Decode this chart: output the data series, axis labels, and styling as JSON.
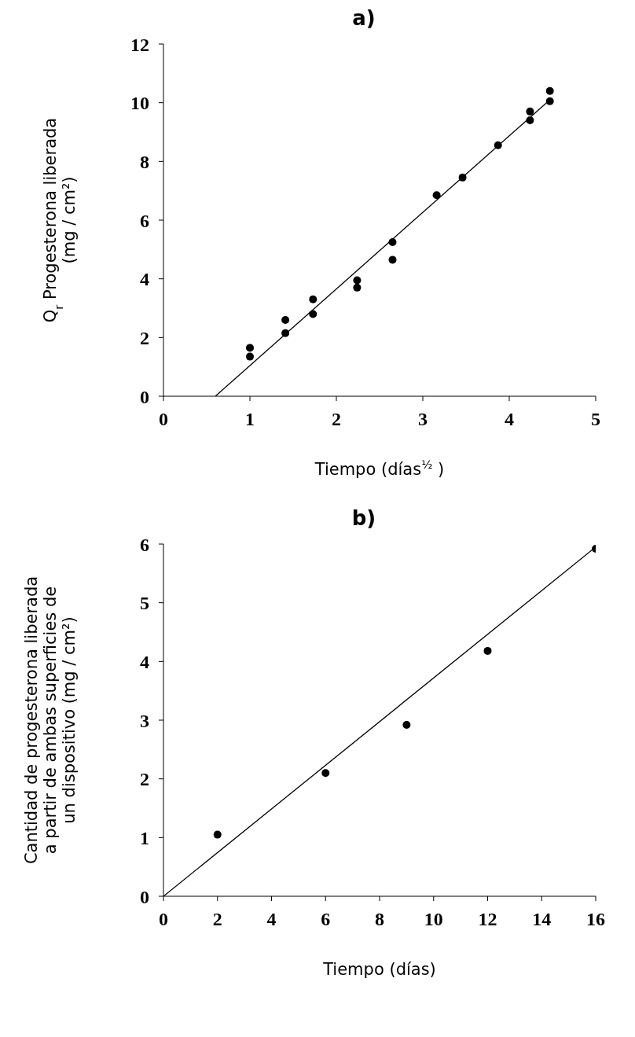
{
  "chart_data": [
    {
      "type": "scatter",
      "title": "a)",
      "xlabel": "Tiempo (días$^{½}$ )",
      "ylabel": "Q$_{r}$ Progesterona liberada (mg / cm²)",
      "xlim": [
        0,
        5
      ],
      "xticks": [
        0,
        1,
        2,
        3,
        4,
        5
      ],
      "ylim": [
        0,
        12
      ],
      "yticks": [
        0,
        2,
        4,
        6,
        8,
        10,
        12
      ],
      "grid": false,
      "legend": false,
      "series": [
        {
          "marker": "circle",
          "color": "#000000",
          "x": [
            1.0,
            1.0,
            1.41,
            1.41,
            1.73,
            1.73,
            2.24,
            2.24,
            2.65,
            2.65,
            3.16,
            3.46,
            3.87,
            4.24,
            4.24,
            4.47,
            4.47
          ],
          "values": [
            1.65,
            1.35,
            2.6,
            2.15,
            3.3,
            2.8,
            3.95,
            3.7,
            5.25,
            4.65,
            6.85,
            7.45,
            8.55,
            9.7,
            9.4,
            10.4,
            10.05
          ]
        },
        {
          "type": "line",
          "marker": "none",
          "line_style": "solid",
          "color": "#000000",
          "x": [
            0.6,
            4.47
          ],
          "values": [
            0,
            10.1
          ]
        }
      ]
    },
    {
      "type": "scatter",
      "title": "b)",
      "xlabel": "Tiempo (días)",
      "ylabel": "Cantidad de progesterona liberada a partir de ambas superficies de un dispositivo (mg / cm²)",
      "xlim": [
        0,
        16
      ],
      "xticks": [
        0,
        2,
        4,
        6,
        8,
        10,
        12,
        14,
        16
      ],
      "ylim": [
        0,
        6
      ],
      "yticks": [
        0,
        1,
        2,
        3,
        4,
        5,
        6
      ],
      "grid": false,
      "legend": false,
      "series": [
        {
          "marker": "circle",
          "color": "#000000",
          "x": [
            2,
            6,
            9,
            12,
            16
          ],
          "values": [
            1.05,
            2.1,
            2.92,
            4.18,
            5.92
          ]
        },
        {
          "type": "line",
          "marker": "none",
          "line_style": "solid",
          "color": "#000000",
          "x": [
            0,
            16
          ],
          "values": [
            0,
            5.95
          ]
        }
      ]
    }
  ]
}
